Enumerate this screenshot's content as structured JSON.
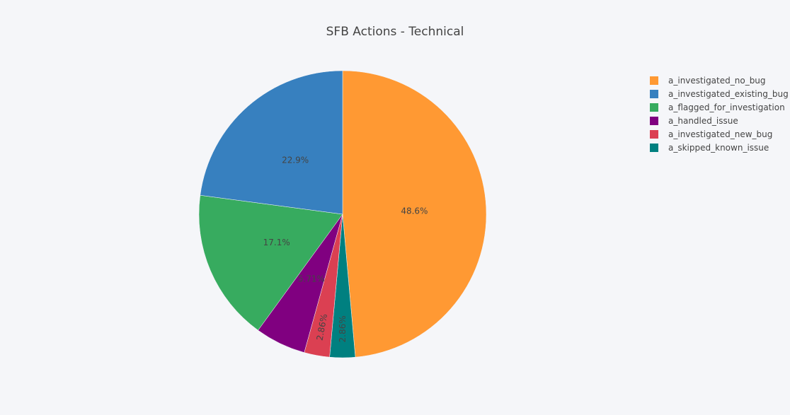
{
  "chart_data": {
    "type": "pie",
    "title": "SFB Actions - Technical",
    "legend_position": "top-right",
    "slices": [
      {
        "label": "a_investigated_no_bug",
        "value": 48.6,
        "text": "48.6%",
        "color": "#ff9933"
      },
      {
        "label": "a_skipped_known_issue",
        "value": 2.86,
        "text": "2.86%",
        "color": "#008080"
      },
      {
        "label": "a_investigated_new_bug",
        "value": 2.86,
        "text": "2.86%",
        "color": "#db4052"
      },
      {
        "label": "a_handled_issue",
        "value": 5.71,
        "text": "5.71%",
        "color": "#800080"
      },
      {
        "label": "a_flagged_for_investigation",
        "value": 17.1,
        "text": "17.1%",
        "color": "#37ab5f"
      },
      {
        "label": "a_investigated_existing_bug",
        "value": 22.9,
        "text": "22.9%",
        "color": "#3780bf"
      }
    ],
    "legend": [
      {
        "label": "a_investigated_no_bug",
        "color": "#ff9933"
      },
      {
        "label": "a_investigated_existing_bug",
        "color": "#3780bf"
      },
      {
        "label": "a_flagged_for_investigation",
        "color": "#37ab5f"
      },
      {
        "label": "a_handled_issue",
        "color": "#800080"
      },
      {
        "label": "a_investigated_new_bug",
        "color": "#db4052"
      },
      {
        "label": "a_skipped_known_issue",
        "color": "#008080"
      }
    ]
  }
}
